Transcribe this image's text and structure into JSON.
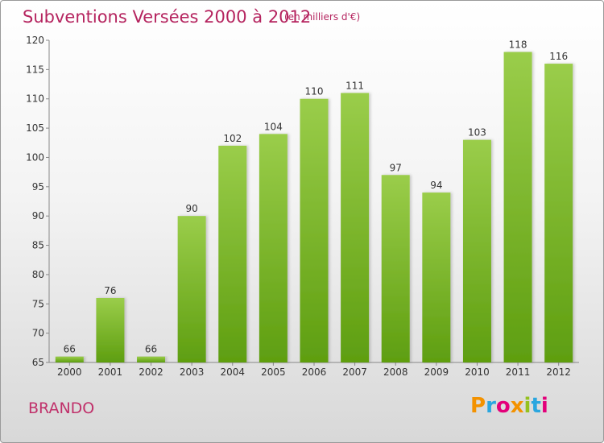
{
  "header": {
    "title": "Subventions Versées 2000 à 2012",
    "subtitle": "(en milliers d'€)"
  },
  "footer": {
    "commune": "BRANDO",
    "logo_text": "Proxiti",
    "logo_colors": [
      "#f39200",
      "#2aa6df",
      "#e3007a",
      "#f39200",
      "#95c11f",
      "#2aa6df",
      "#e3007a"
    ]
  },
  "colors": {
    "bar_top": "#9acd4a",
    "bar_bottom": "#5e9e10",
    "title": "#b5245f",
    "axis": "#888888",
    "tick_text": "#333333"
  },
  "chart_data": {
    "type": "bar",
    "title": "Subventions Versées 2000 à 2012",
    "subtitle": "(en milliers d'€)",
    "xlabel": "",
    "ylabel": "",
    "categories": [
      "2000",
      "2001",
      "2002",
      "2003",
      "2004",
      "2005",
      "2006",
      "2007",
      "2008",
      "2009",
      "2010",
      "2011",
      "2012"
    ],
    "values": [
      66,
      76,
      66,
      90,
      102,
      104,
      110,
      111,
      97,
      94,
      103,
      118,
      116
    ],
    "ylim": [
      65,
      120
    ],
    "yticks": [
      65,
      70,
      75,
      80,
      85,
      90,
      95,
      100,
      105,
      110,
      115,
      120
    ],
    "grid": false,
    "data_labels": true
  }
}
